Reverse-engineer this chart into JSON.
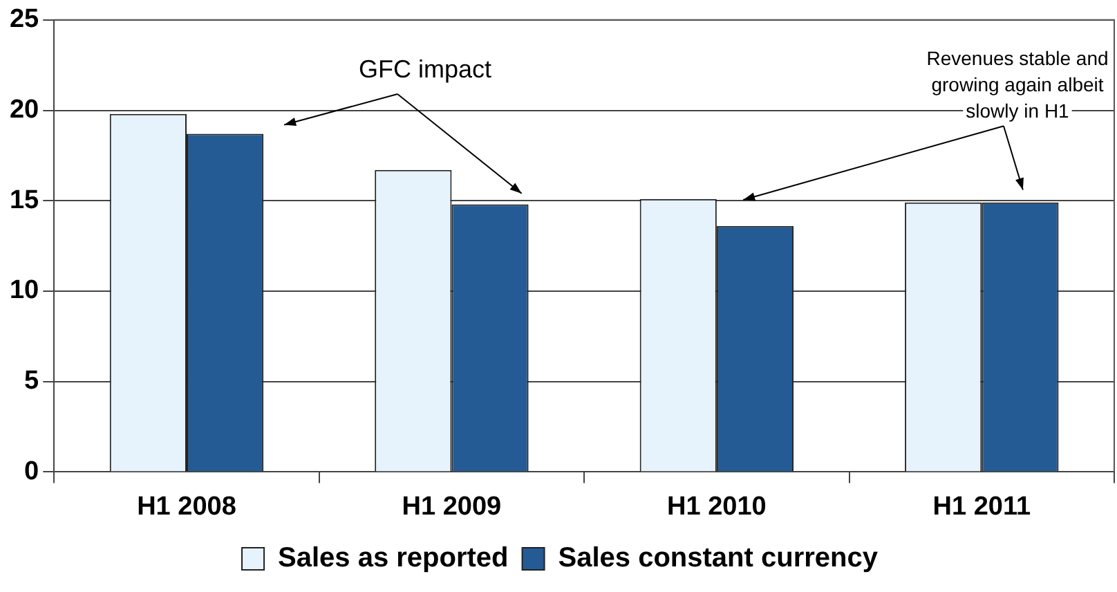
{
  "chart_data": {
    "type": "bar",
    "categories": [
      "H1 2008",
      "H1 2009",
      "H1 2010",
      "H1 2011"
    ],
    "series": [
      {
        "name": "Sales as reported",
        "color": "#e6f3fc",
        "values": [
          19.8,
          16.7,
          15.1,
          14.9
        ]
      },
      {
        "name": "Sales constant currency",
        "color": "#255b94",
        "values": [
          18.7,
          14.8,
          13.6,
          14.9
        ]
      }
    ],
    "ylim": [
      0,
      25
    ],
    "yticks": [
      0,
      5,
      10,
      15,
      20,
      25
    ],
    "grid": "y",
    "legend": "bottom",
    "annotations": [
      "GFC impact",
      "Revenues stable and\ngrowing again albeit\nslowly in H1"
    ]
  }
}
